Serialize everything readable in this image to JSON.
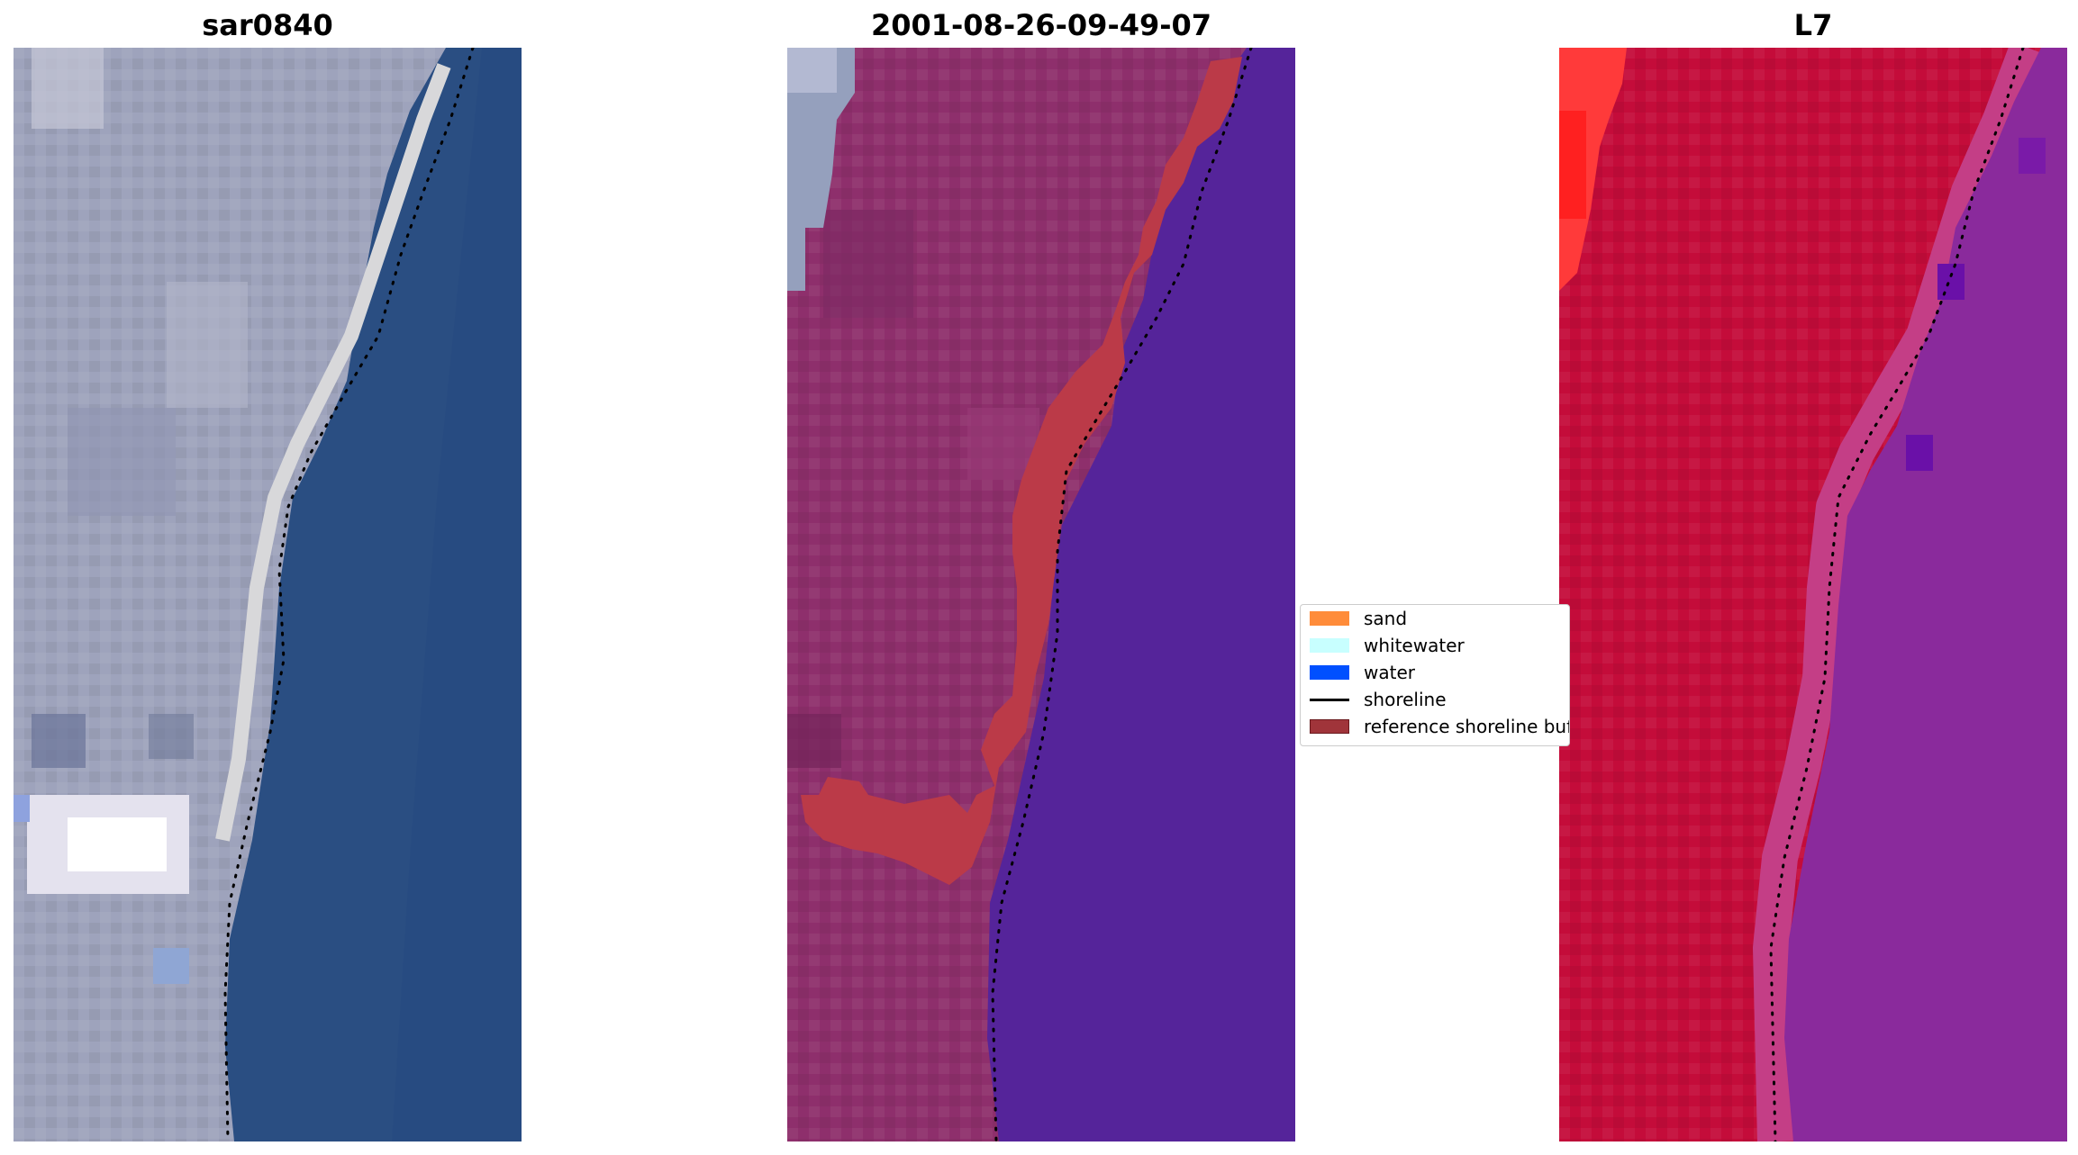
{
  "panels": [
    {
      "title": "sar0840"
    },
    {
      "title": "2001-08-26-09-49-07"
    },
    {
      "title": "L7"
    }
  ],
  "legend": {
    "items": [
      {
        "label": "sand",
        "color": "#ff8c3a",
        "kind": "patch"
      },
      {
        "label": "whitewater",
        "color": "#c8ffff",
        "kind": "patch"
      },
      {
        "label": "water",
        "color": "#0050ff",
        "kind": "patch"
      },
      {
        "label": "shoreline",
        "color": "#000000",
        "kind": "line"
      },
      {
        "label": "reference shoreline buffer",
        "color": "#a0343a",
        "kind": "patch"
      }
    ]
  },
  "colors": {
    "rgb_land": "#9ea3bc",
    "rgb_water": "#2a4e82",
    "rgb_beach": "#d4d4d6",
    "class_land": "#8e2f6c",
    "class_water": "#55249a",
    "class_buffer": "#bb3a48",
    "nir_land": "#c40c3a",
    "nir_water": "#8a2a9c"
  }
}
